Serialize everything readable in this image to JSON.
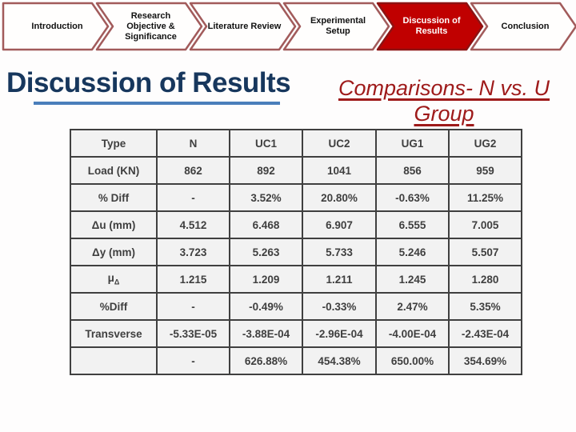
{
  "nav": {
    "items": [
      {
        "label": "Introduction",
        "active": false
      },
      {
        "label": "Research Objective & Significance",
        "active": false
      },
      {
        "label": "Literature Review",
        "active": false
      },
      {
        "label": "Experimental Setup",
        "active": false
      },
      {
        "label": "Discussion of Results",
        "active": true
      },
      {
        "label": "Conclusion",
        "active": false
      }
    ]
  },
  "title": "Discussion of Results",
  "subtitle": "Comparisons- N vs. U Group",
  "table": {
    "headers": [
      "Type",
      "N",
      "UC1",
      "UC2",
      "UG1",
      "UG2"
    ],
    "rows": [
      [
        "Load (KN)",
        "862",
        "892",
        "1041",
        "856",
        "959"
      ],
      [
        "% Diff",
        "-",
        "3.52%",
        "20.80%",
        "-0.63%",
        "11.25%"
      ],
      [
        "Δu (mm)",
        "4.512",
        "6.468",
        "6.907",
        "6.555",
        "7.005"
      ],
      [
        "Δy (mm)",
        "3.723",
        "5.263",
        "5.733",
        "5.246",
        "5.507"
      ],
      [
        "μΔ",
        "1.215",
        "1.209",
        "1.211",
        "1.245",
        "1.280"
      ],
      [
        "%Diff",
        "-",
        "-0.49%",
        "-0.33%",
        "2.47%",
        "5.35%"
      ],
      [
        "Transverse",
        "-5.33E-05",
        "-3.88E-04",
        "-2.96E-04",
        "-4.00E-04",
        "-2.43E-04"
      ],
      [
        "",
        "-",
        "626.88%",
        "454.38%",
        "650.00%",
        "354.69%"
      ]
    ]
  },
  "colors": {
    "accent_red": "#C00000",
    "nav_border": "#A25B5B",
    "title_navy": "#17375D",
    "title_underline_blue": "#4A7EBB",
    "subtitle_red": "#9E1A1A",
    "table_border": "#404040",
    "table_cell_bg": "#F2F2F2",
    "table_text": "#3F3F3F"
  }
}
